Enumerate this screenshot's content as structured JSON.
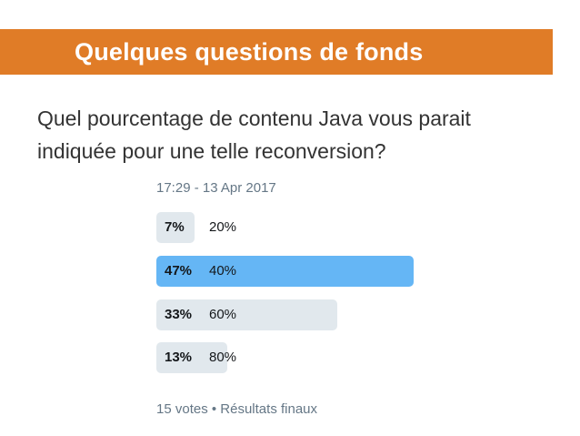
{
  "slide": {
    "title": "Quelques questions de fonds",
    "question_lines": [
      "Quel pourcentage de contenu Java vous parait",
      "indiquée pour une telle reconversion?"
    ]
  },
  "poll": {
    "timestamp": "17:29 - 13 Apr 2017",
    "options": [
      {
        "percent": "7%",
        "label": "20%",
        "share": 0.07,
        "winner": false
      },
      {
        "percent": "47%",
        "label": "40%",
        "share": 0.47,
        "winner": true
      },
      {
        "percent": "33%",
        "label": "60%",
        "share": 0.33,
        "winner": false
      },
      {
        "percent": "13%",
        "label": "80%",
        "share": 0.13,
        "winner": false
      }
    ],
    "footer": "15 votes • Résultats finaux"
  },
  "colors": {
    "title_band": "#E07C27",
    "winner_bar": "#65B6F5",
    "other_bar": "#E1E8ED",
    "meta_text": "#657786"
  }
}
